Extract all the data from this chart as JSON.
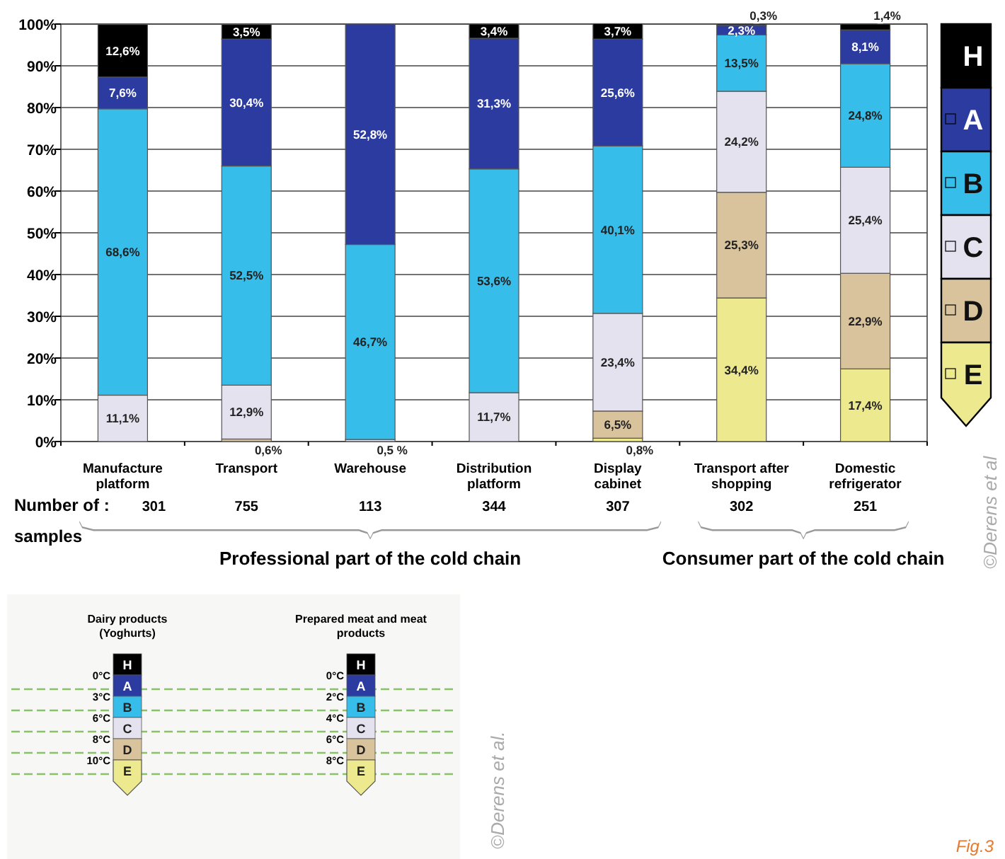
{
  "chart_data": {
    "type": "bar",
    "stacked": true,
    "categories": [
      "Manufacture platform",
      "Transport",
      "Warehouse",
      "Distribution platform",
      "Display cabinet",
      "Transport after shopping",
      "Domestic refrigerator"
    ],
    "series": [
      {
        "name": "E",
        "color": "#ece98f",
        "values": [
          null,
          null,
          null,
          null,
          0.8,
          34.4,
          17.4
        ],
        "value_labels": [
          null,
          null,
          null,
          null,
          "0,8%",
          "34,4%",
          "17,4%"
        ]
      },
      {
        "name": "D",
        "color": "#d8c39c",
        "values": [
          null,
          0.6,
          null,
          null,
          6.5,
          25.3,
          22.9
        ],
        "value_labels": [
          null,
          "0,6%",
          null,
          null,
          "6,5%",
          "25,3%",
          "22,9%"
        ]
      },
      {
        "name": "C",
        "color": "#e4e2ee",
        "values": [
          11.1,
          12.9,
          0.5,
          11.7,
          23.4,
          24.2,
          25.4
        ],
        "value_labels": [
          "11,1%",
          "12,9%",
          "0,5 %",
          "11,7%",
          "23,4%",
          "24,2%",
          "25,4%"
        ]
      },
      {
        "name": "B",
        "color": "#36bde9",
        "values": [
          68.6,
          52.5,
          46.7,
          53.6,
          40.1,
          13.5,
          24.8
        ],
        "value_labels": [
          "68,6%",
          "52,5%",
          "46,7%",
          "53,6%",
          "40,1%",
          "13,5%",
          "24,8%"
        ]
      },
      {
        "name": "A",
        "color": "#2b3ba0",
        "values": [
          7.6,
          30.4,
          52.8,
          31.3,
          25.6,
          2.3,
          8.1
        ],
        "value_labels": [
          "7,6%",
          "30,4%",
          "52,8%",
          "31,3%",
          "25,6%",
          "2,3%",
          "8,1%"
        ]
      },
      {
        "name": "H",
        "color": "#000000",
        "values": [
          12.6,
          3.5,
          null,
          3.4,
          3.7,
          0.3,
          1.4
        ],
        "value_labels": [
          "12,6%",
          "3,5%",
          null,
          "3,4%",
          "3,7%",
          "0,3%",
          "1,4%"
        ]
      }
    ],
    "ylim": [
      0,
      100
    ],
    "yticks": [
      {
        "value": 0,
        "label": "0%"
      },
      {
        "value": 10,
        "label": "10%"
      },
      {
        "value": 20,
        "label": "20%"
      },
      {
        "value": 30,
        "label": "30%"
      },
      {
        "value": 40,
        "label": "40%"
      },
      {
        "value": 50,
        "label": "50%"
      },
      {
        "value": 60,
        "label": "60%"
      },
      {
        "value": 70,
        "label": "70%"
      },
      {
        "value": 80,
        "label": "80%"
      },
      {
        "value": 90,
        "label": "90%"
      },
      {
        "value": 100,
        "label": "100%"
      }
    ],
    "grid": "y",
    "legend": "right",
    "annotations": [
      "301",
      "755",
      "113",
      "344",
      "307",
      "302",
      "251",
      "Number of :",
      "samples",
      "Professional part of the cold chain",
      "Consumer part of the cold chain",
      "Dairy products (Yoghurts)",
      "0°C",
      "3°C",
      "6°C",
      "8°C",
      "10°C",
      "Prepared meat and meat products",
      "0°C",
      "2°C",
      "4°C",
      "6°C",
      "8°C",
      "©Derens et al",
      "©Derens et al.",
      "Fig.3"
    ]
  }
}
